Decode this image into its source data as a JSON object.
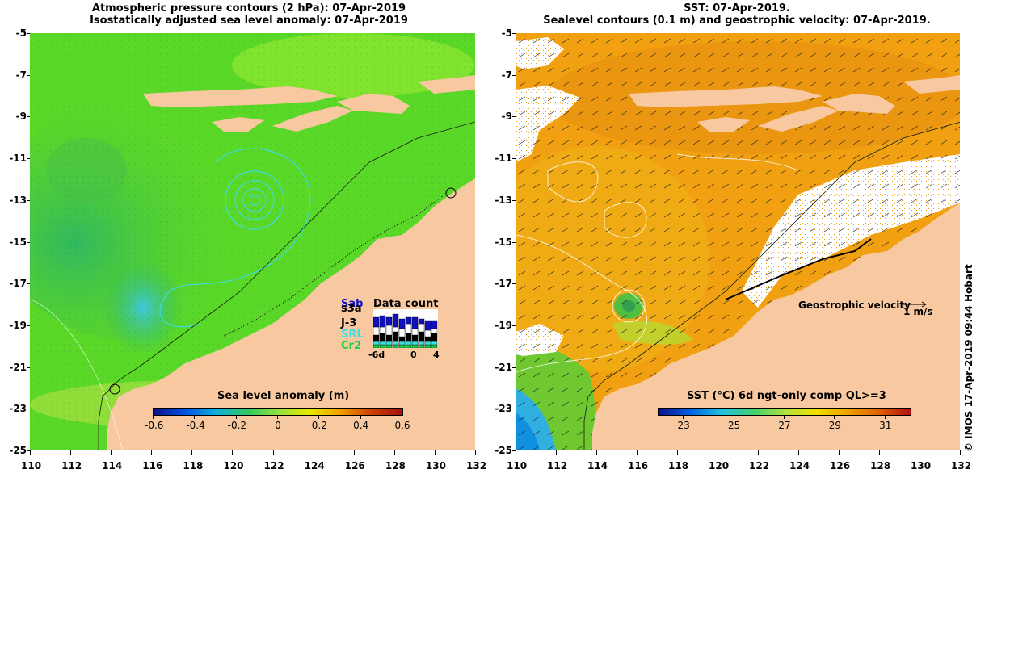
{
  "left_map": {
    "title_line1": "Atmospheric pressure contours (2 hPa): 07-Apr-2019",
    "title_line2": "Isostatically adjusted sea level anomaly: 07-Apr-2019",
    "colorbar": {
      "title": "Sea level anomaly (m)",
      "ticks": [
        "-0.6",
        "-0.4",
        "-0.2",
        "0",
        "0.2",
        "0.4",
        "0.6"
      ],
      "tick_values": [
        -0.6,
        -0.4,
        -0.2,
        0,
        0.2,
        0.4,
        0.6
      ],
      "range": [
        -0.6,
        0.6
      ],
      "colors": [
        "#10108a",
        "#0050e0",
        "#10b0e0",
        "#30c860",
        "#90e040",
        "#e8e800",
        "#f0a000",
        "#d04000",
        "#a01010"
      ]
    },
    "data_count": {
      "title": "Data count",
      "satellites": [
        {
          "name": "Sab",
          "color": "#1010c0"
        },
        {
          "name": "s3a",
          "color": "#000000"
        },
        {
          "name": "J-3",
          "color": "#000000"
        },
        {
          "name": "SRL",
          "color": "#40e0e0"
        },
        {
          "name": "Cr2",
          "color": "#20d040"
        }
      ],
      "x_ticks": [
        "-6d",
        "0",
        "4"
      ]
    }
  },
  "right_map": {
    "title_line1": "SST: 07-Apr-2019.",
    "title_line2": "Sealevel contours (0.1 m) and geostrophic velocity: 07-Apr-2019.",
    "colorbar": {
      "title": "SST (°C) 6d ngt-only comp QL>=3",
      "ticks": [
        "23",
        "25",
        "27",
        "29",
        "31"
      ],
      "tick_values": [
        23,
        25,
        27,
        29,
        31
      ],
      "range": [
        22,
        32
      ],
      "colors": [
        "#10108a",
        "#0060e0",
        "#20c0e0",
        "#40d070",
        "#b0e040",
        "#f0e000",
        "#f0a000",
        "#e06000",
        "#b01010"
      ]
    },
    "geostrophic_label": "Geostrophic velocity",
    "velocity_scale": "1 m/s"
  },
  "axes": {
    "x_ticks": [
      "110",
      "112",
      "114",
      "116",
      "118",
      "120",
      "122",
      "124",
      "126",
      "128",
      "130",
      "132"
    ],
    "x_values": [
      110,
      112,
      114,
      116,
      118,
      120,
      122,
      124,
      126,
      128,
      130,
      132
    ],
    "y_ticks": [
      "-5",
      "-7",
      "-9",
      "-11",
      "-13",
      "-15",
      "-17",
      "-19",
      "-21",
      "-23",
      "-25"
    ],
    "y_values": [
      -5,
      -7,
      -9,
      -11,
      -13,
      -15,
      -17,
      -19,
      -21,
      -23,
      -25
    ],
    "lon_range": [
      110,
      132
    ],
    "lat_range": [
      -25,
      -5
    ]
  },
  "credit": "© IMOS 17-Apr-2019 09:44 Hobart",
  "colors": {
    "land": "#f8c8a0",
    "sla_background": "#58d828",
    "sst_background": "#f0a010",
    "cloud": "#ffffff"
  }
}
